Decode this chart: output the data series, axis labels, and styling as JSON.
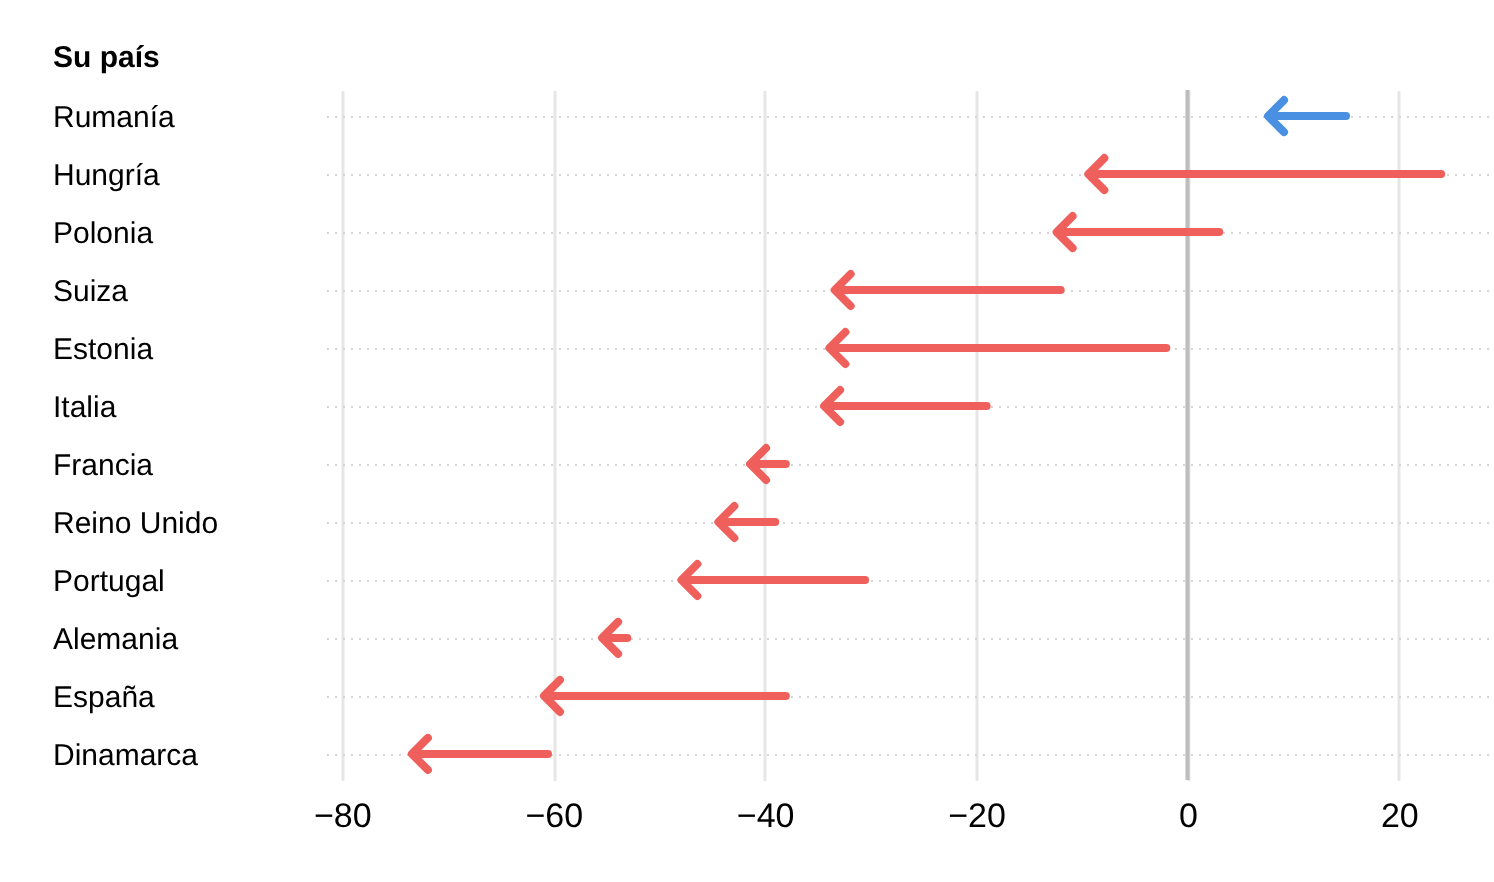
{
  "chart_data": {
    "type": "bar",
    "orientation": "horizontal",
    "ylabel": "Su país",
    "categories": [
      "Rumanía",
      "Hungría",
      "Polonia",
      "Suiza",
      "Estonia",
      "Italia",
      "Francia",
      "Reino Unido",
      "Portugal",
      "Alemania",
      "España",
      "Dinamarca"
    ],
    "series": [
      {
        "base": [
          15,
          24,
          3,
          -12,
          -2,
          -19,
          -38,
          -39,
          -30.5,
          -53,
          -38,
          -60.5
        ],
        "values": [
          -7,
          -33,
          -15,
          -21,
          -31.5,
          -15,
          -3,
          -5,
          -17,
          -2,
          -22.5,
          -12.5
        ],
        "colors": [
          "#4a90e2",
          "#ef5f5b",
          "#ef5f5b",
          "#ef5f5b",
          "#ef5f5b",
          "#ef5f5b",
          "#ef5f5b",
          "#ef5f5b",
          "#ef5f5b",
          "#ef5f5b",
          "#ef5f5b",
          "#ef5f5b"
        ]
      },
      {
        "type": "scatter",
        "x": [
          "Rumanía",
          "Hungría",
          "Polonia",
          "Suiza",
          "Estonia",
          "Italia",
          "Francia",
          "Reino Unido",
          "Portugal",
          "Alemania",
          "España",
          "Dinamarca"
        ],
        "values": [
          8,
          -9,
          -12,
          -33,
          -33.5,
          -34,
          -41,
          -44,
          -47.5,
          -55,
          -60.5,
          -73
        ],
        "colors": [
          "#4a90e2",
          "#ef5f5b",
          "#ef5f5b",
          "#ef5f5b",
          "#ef5f5b",
          "#ef5f5b",
          "#ef5f5b",
          "#ef5f5b",
          "#ef5f5b",
          "#ef5f5b",
          "#ef5f5b",
          "#ef5f5b"
        ]
      }
    ],
    "xlim": [
      -81.5,
      29
    ],
    "xticks": [
      -80,
      -60,
      -40,
      -20,
      0,
      20
    ],
    "ref_lines": [
      {
        "axis": "x",
        "value": 0,
        "color": "#bdbdbd"
      }
    ],
    "grid": true
  }
}
